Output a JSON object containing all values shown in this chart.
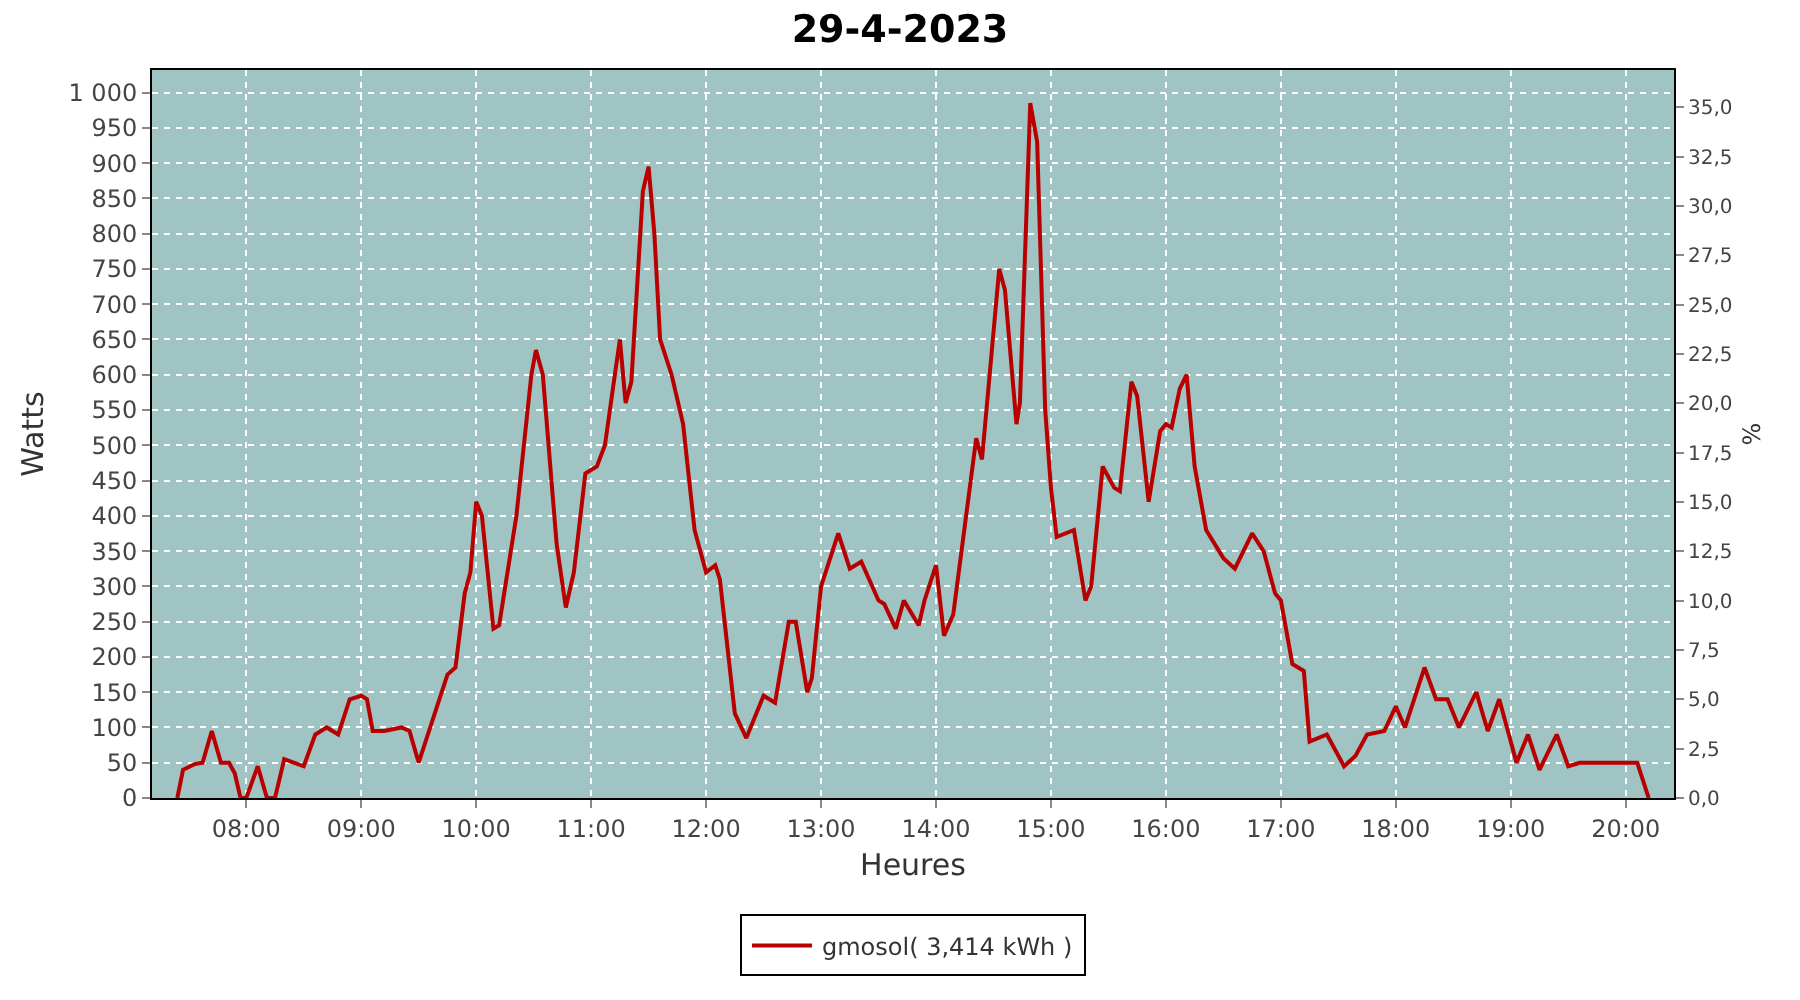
{
  "chart_data": {
    "type": "line",
    "title": "29-4-2023",
    "xlabel": "Heures",
    "ylabel": "Watts",
    "y2label": "%",
    "x": [
      7.4,
      7.45,
      7.55,
      7.62,
      7.7,
      7.78,
      7.85,
      7.9,
      7.95,
      8.0,
      8.1,
      8.18,
      8.25,
      8.33,
      8.5,
      8.6,
      8.7,
      8.8,
      8.9,
      9.0,
      9.05,
      9.1,
      9.2,
      9.35,
      9.42,
      9.5,
      9.6,
      9.75,
      9.82,
      9.9,
      9.95,
      10.0,
      10.05,
      10.15,
      10.2,
      10.35,
      10.48,
      10.52,
      10.58,
      10.7,
      10.78,
      10.85,
      10.95,
      11.05,
      11.12,
      11.25,
      11.3,
      11.35,
      11.45,
      11.5,
      11.55,
      11.6,
      11.7,
      11.8,
      11.9,
      12.0,
      12.08,
      12.12,
      12.25,
      12.35,
      12.5,
      12.6,
      12.72,
      12.78,
      12.88,
      12.92,
      13.0,
      13.15,
      13.25,
      13.35,
      13.5,
      13.55,
      13.65,
      13.72,
      13.85,
      13.9,
      14.0,
      14.07,
      14.15,
      14.35,
      14.4,
      14.55,
      14.6,
      14.7,
      14.73,
      14.82,
      14.88,
      14.95,
      15.0,
      15.05,
      15.2,
      15.3,
      15.35,
      15.45,
      15.55,
      15.6,
      15.7,
      15.75,
      15.85,
      15.95,
      16.0,
      16.05,
      16.12,
      16.18,
      16.25,
      16.35,
      16.5,
      16.6,
      16.75,
      16.85,
      16.95,
      17.0,
      17.1,
      17.2,
      17.25,
      17.4,
      17.55,
      17.65,
      17.75,
      17.9,
      18.0,
      18.08,
      18.25,
      18.35,
      18.45,
      18.55,
      18.7,
      18.8,
      18.9,
      19.05,
      19.15,
      19.25,
      19.4,
      19.5,
      19.6,
      20.0,
      20.1,
      20.2
    ],
    "series": [
      {
        "name": "gmosol( 3,414 kWh )",
        "color": "#b80000",
        "values": [
          0,
          40,
          48,
          50,
          95,
          50,
          50,
          35,
          0,
          0,
          45,
          0,
          0,
          55,
          45,
          90,
          100,
          90,
          140,
          145,
          140,
          95,
          95,
          100,
          95,
          50,
          100,
          175,
          185,
          290,
          320,
          420,
          400,
          240,
          245,
          400,
          600,
          635,
          600,
          360,
          270,
          320,
          460,
          470,
          500,
          650,
          560,
          590,
          860,
          895,
          800,
          650,
          600,
          530,
          380,
          320,
          330,
          310,
          120,
          85,
          145,
          135,
          250,
          250,
          150,
          170,
          300,
          375,
          325,
          335,
          280,
          275,
          240,
          280,
          245,
          280,
          330,
          230,
          260,
          510,
          480,
          750,
          720,
          530,
          560,
          985,
          930,
          550,
          440,
          370,
          380,
          280,
          300,
          470,
          440,
          435,
          590,
          570,
          420,
          520,
          530,
          525,
          580,
          600,
          470,
          380,
          340,
          325,
          375,
          350,
          290,
          280,
          190,
          180,
          80,
          90,
          45,
          60,
          90,
          95,
          130,
          100,
          185,
          140,
          140,
          100,
          150,
          95,
          140,
          50,
          90,
          40,
          90,
          45,
          50,
          50,
          50,
          0
        ]
      }
    ],
    "xlim": [
      7.18,
      20.42
    ],
    "xticks": [
      {
        "value": 8,
        "label": "08:00"
      },
      {
        "value": 9,
        "label": "09:00"
      },
      {
        "value": 10,
        "label": "10:00"
      },
      {
        "value": 11,
        "label": "11:00"
      },
      {
        "value": 12,
        "label": "12:00"
      },
      {
        "value": 13,
        "label": "13:00"
      },
      {
        "value": 14,
        "label": "14:00"
      },
      {
        "value": 15,
        "label": "15:00"
      },
      {
        "value": 16,
        "label": "16:00"
      },
      {
        "value": 17,
        "label": "17:00"
      },
      {
        "value": 18,
        "label": "18:00"
      },
      {
        "value": 19,
        "label": "19:00"
      },
      {
        "value": 20,
        "label": "20:00"
      }
    ],
    "ylim": [
      0,
      1032
    ],
    "yticks": [
      0,
      50,
      100,
      150,
      200,
      250,
      300,
      350,
      400,
      450,
      500,
      550,
      600,
      650,
      700,
      750,
      800,
      850,
      900,
      950,
      {
        "value": 1000,
        "label": "1 000"
      }
    ],
    "y2lim": [
      0,
      36.9
    ],
    "y2ticks": [
      {
        "value": 0,
        "label": "0,0"
      },
      {
        "value": 2.5,
        "label": "2,5"
      },
      {
        "value": 5,
        "label": "5,0"
      },
      {
        "value": 7.5,
        "label": "7,5"
      },
      {
        "value": 10,
        "label": "10,0"
      },
      {
        "value": 12.5,
        "label": "12,5"
      },
      {
        "value": 15,
        "label": "15,0"
      },
      {
        "value": 17.5,
        "label": "17,5"
      },
      {
        "value": 20,
        "label": "20,0"
      },
      {
        "value": 22.5,
        "label": "22,5"
      },
      {
        "value": 25,
        "label": "25,0"
      },
      {
        "value": 27.5,
        "label": "27,5"
      },
      {
        "value": 30,
        "label": "30,0"
      },
      {
        "value": 32.5,
        "label": "32,5"
      },
      {
        "value": 35,
        "label": "35,0"
      }
    ],
    "grid": true,
    "legend": "bottom",
    "marker": "none",
    "line_style": "solid"
  }
}
